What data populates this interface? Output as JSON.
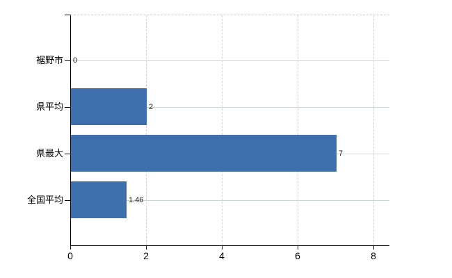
{
  "chart_data": {
    "type": "bar",
    "orientation": "horizontal",
    "title": "",
    "xlabel": "",
    "ylabel": "",
    "categories": [
      "裾野市",
      "県平均",
      "県最大",
      "全国平均"
    ],
    "values": [
      0,
      2,
      7,
      1.46
    ],
    "value_labels": [
      "0",
      "2",
      "7",
      "1.46"
    ],
    "x_ticks": [
      0,
      2,
      4,
      6,
      8
    ],
    "x_tick_labels": [
      "0",
      "2",
      "4",
      "6",
      "8"
    ],
    "xlim": [
      0,
      8.42
    ],
    "grid": true,
    "legend": "none",
    "colors": {
      "bar": "#3e6fac",
      "axis": "#000000",
      "vertical_gridline": "#d7d1d7",
      "horizontal_gridline": "#cfdacf",
      "top_border": "#cfcacf",
      "text": "#000000",
      "background": "#ffffff"
    }
  }
}
